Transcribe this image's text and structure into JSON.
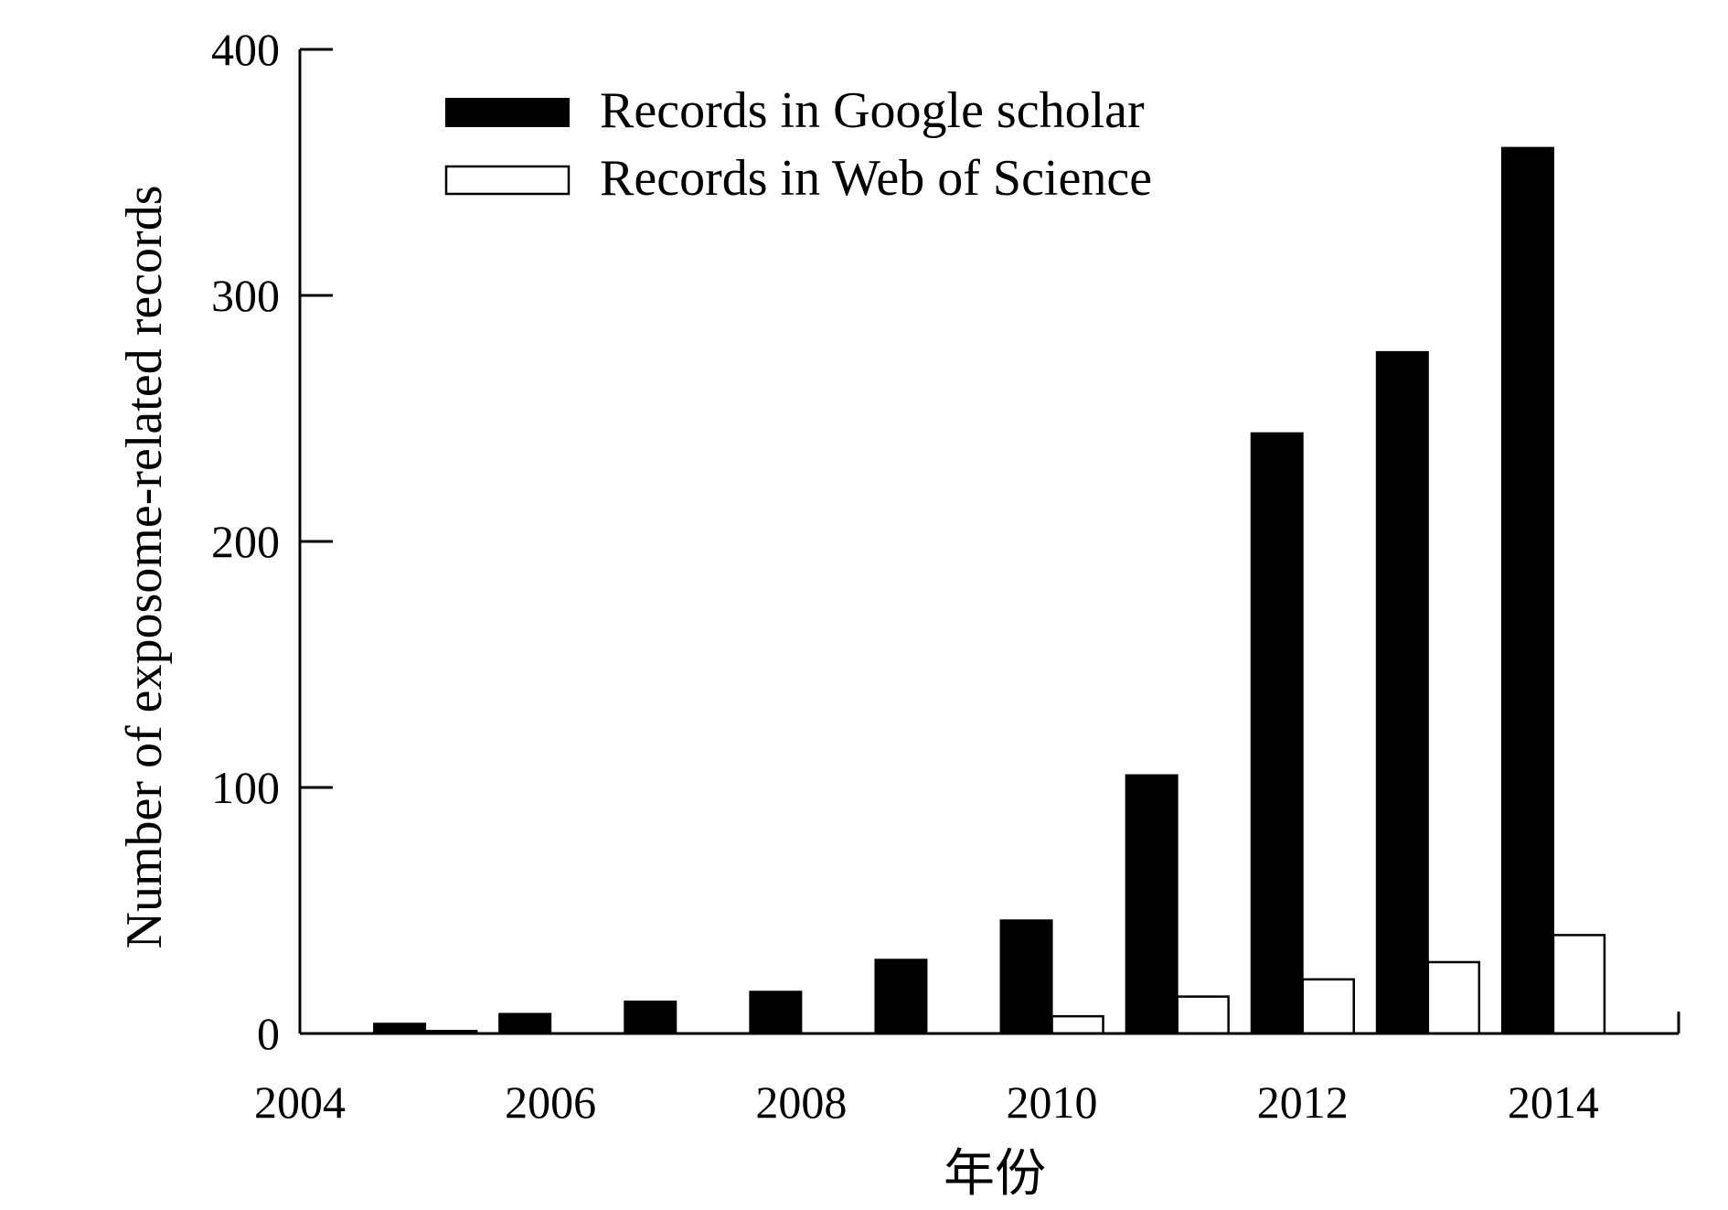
{
  "chart_data": {
    "type": "bar",
    "title": "",
    "xlabel": "年份",
    "ylabel": "Number of exposome-related records",
    "x_ticks": [
      "2004",
      "2006",
      "2008",
      "2010",
      "2012",
      "2014"
    ],
    "y_ticks": [
      "0",
      "100",
      "200",
      "300",
      "400"
    ],
    "xlim": [
      2004,
      2015
    ],
    "ylim": [
      0,
      400
    ],
    "grid": false,
    "legend_position": "top-left",
    "categories": [
      "2005",
      "2006",
      "2007",
      "2008",
      "2009",
      "2010",
      "2011",
      "2012",
      "2013",
      "2014"
    ],
    "series": [
      {
        "name": "Records in Google scholar",
        "color": "#000000",
        "values": [
          4,
          8,
          13,
          17,
          30,
          46,
          105,
          244,
          277,
          360
        ]
      },
      {
        "name": "Records in Web of Science",
        "color": "#ffffff",
        "values": [
          1,
          0,
          0,
          0,
          0,
          7,
          15,
          22,
          29,
          40
        ]
      }
    ]
  }
}
